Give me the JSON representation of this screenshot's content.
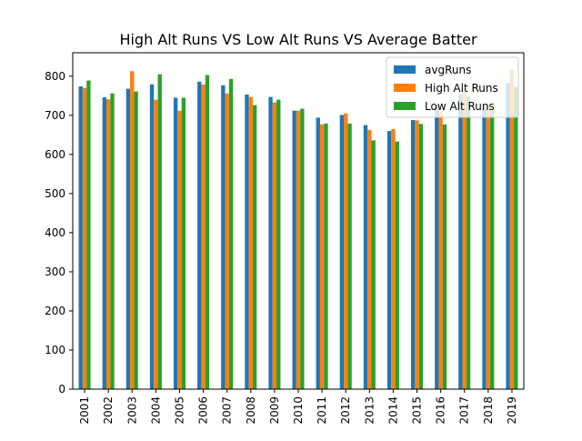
{
  "chart_data": {
    "type": "bar",
    "title": "High Alt Runs VS Low Alt Runs VS Average Batter",
    "xlabel": "",
    "ylabel": "",
    "ylim": [
      0,
      860
    ],
    "yticks": [
      0,
      100,
      200,
      300,
      400,
      500,
      600,
      700,
      800
    ],
    "grid": false,
    "legend_position": "top-right",
    "categories": [
      "2001",
      "2002",
      "2003",
      "2004",
      "2005",
      "2006",
      "2007",
      "2008",
      "2009",
      "2010",
      "2011",
      "2012",
      "2013",
      "2014",
      "2015",
      "2016",
      "2017",
      "2018",
      "2019"
    ],
    "series": [
      {
        "name": "avgRuns",
        "color": "#1f77b4",
        "values": [
          774,
          746,
          768,
          779,
          745,
          786,
          777,
          753,
          747,
          712,
          694,
          701,
          675,
          660,
          688,
          725,
          753,
          721,
          782
        ]
      },
      {
        "name": "High Alt Runs",
        "color": "#ff7f0e",
        "values": [
          770,
          741,
          813,
          740,
          712,
          779,
          756,
          747,
          733,
          712,
          677,
          705,
          663,
          665,
          687,
          711,
          770,
          725,
          817
        ]
      },
      {
        "name": "Low Alt Runs",
        "color": "#2ca02c",
        "values": [
          789,
          756,
          761,
          805,
          745,
          803,
          793,
          726,
          740,
          717,
          679,
          679,
          636,
          633,
          678,
          677,
          748,
          716,
          773
        ]
      }
    ]
  }
}
